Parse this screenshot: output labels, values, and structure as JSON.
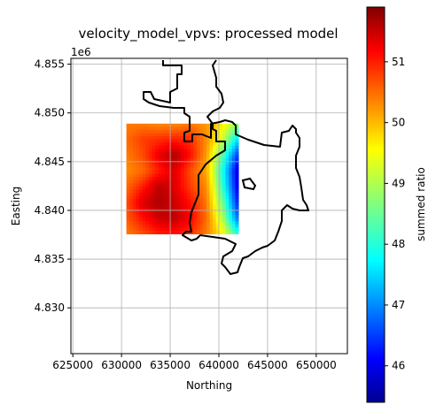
{
  "chart_data": {
    "type": "heatmap",
    "title": "velocity_model_vpvs: processed model",
    "xlabel": "Northing",
    "ylabel": "Easting",
    "y_offset_label": "1e6",
    "xlim": [
      624800,
      653200
    ],
    "ylim": [
      4825300,
      4855600
    ],
    "x_ticks": [
      625000,
      630000,
      635000,
      640000,
      645000,
      650000
    ],
    "y_ticks": [
      4.83,
      4.835,
      4.84,
      4.845,
      4.85,
      4.855
    ],
    "grid": true,
    "colormap": "jet",
    "colorbar": {
      "label": "summed ratio",
      "range": [
        45.4,
        51.9
      ],
      "ticks": [
        46,
        47,
        48,
        49,
        50,
        51
      ],
      "position": "right"
    },
    "data_extent": {
      "x": [
        630500,
        642000
      ],
      "y": [
        4837600,
        4848900
      ]
    },
    "grid_values_rows_north_to_south": [
      [
        50.3,
        50.3,
        50.2,
        50.2,
        50.3,
        50.1,
        49.6,
        48.8
      ],
      [
        50.4,
        50.7,
        50.8,
        50.9,
        50.8,
        50.2,
        49.2,
        47.6
      ],
      [
        50.3,
        50.6,
        51.2,
        51.6,
        51.0,
        50.1,
        48.4,
        46.5
      ],
      [
        50.2,
        50.4,
        50.9,
        51.3,
        50.6,
        50.0,
        48.0,
        45.9
      ],
      [
        50.4,
        50.9,
        51.5,
        51.3,
        50.7,
        50.2,
        48.2,
        46.0
      ],
      [
        50.6,
        51.3,
        51.6,
        51.4,
        51.0,
        50.3,
        48.6,
        46.3
      ],
      [
        50.5,
        51.0,
        51.4,
        51.5,
        51.1,
        50.4,
        49.0,
        46.8
      ],
      [
        50.3,
        50.6,
        50.9,
        51.0,
        50.8,
        50.3,
        49.5,
        48.0
      ]
    ]
  }
}
